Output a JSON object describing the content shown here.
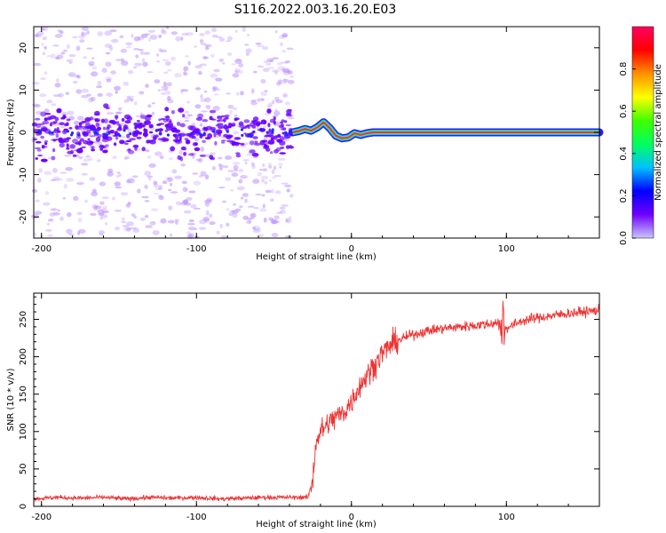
{
  "title": "S116.2022.003.16.20.E03",
  "colors": {
    "snr_line": "#ee3333",
    "dynamic_spectrum_points": "#6a00ff",
    "dynamic_spectrum_cloud": "#b88cff",
    "signal_band_outer": "#2a1aff",
    "signal_band_core": "#ff2a55"
  },
  "chart_data": [
    {
      "type": "heatmap",
      "name": "dynamic-spectrum",
      "xlabel": "Height of straight line (km)",
      "ylabel": "Frequency (Hz)",
      "xlim": [
        -205,
        160
      ],
      "ylim": [
        -25,
        25
      ],
      "xticks": [
        -200,
        -100,
        0,
        100
      ],
      "yticks": [
        -20,
        -10,
        0,
        10,
        20
      ],
      "grid": false,
      "noise_region_x": [
        -205,
        -38
      ],
      "signal_region_x": [
        -38,
        160
      ],
      "signal_center_trace": {
        "x": [
          -38,
          -34,
          -30,
          -26,
          -22,
          -18,
          -14,
          -10,
          -6,
          -2,
          2,
          6,
          10,
          14,
          20,
          40,
          90,
          160
        ],
        "y": [
          0,
          0.3,
          0.8,
          0.4,
          1.2,
          2.4,
          1.0,
          -0.8,
          -1.4,
          -1.2,
          -0.2,
          -0.6,
          -0.2,
          0,
          0,
          0,
          0,
          0
        ]
      },
      "colorbar": {
        "label": "Normalized spectral amplitude",
        "range": [
          0,
          1
        ],
        "ticks": [
          "0.0",
          "0.2",
          "0.4",
          "0.6",
          "0.8"
        ],
        "colormap": [
          "#c8c8ff",
          "#7000ff",
          "#0000ff",
          "#00c0ff",
          "#00ff60",
          "#40ff00",
          "#ffff00",
          "#ff9000",
          "#ff0000",
          "#ff0060"
        ]
      }
    },
    {
      "type": "line",
      "name": "snr",
      "xlabel": "Height of straight line (km)",
      "ylabel": "SNR (10 * v/v)",
      "xlim": [
        -205,
        160
      ],
      "ylim": [
        0,
        285
      ],
      "xticks": [
        -200,
        -100,
        0,
        100
      ],
      "yticks": [
        0,
        50,
        100,
        150,
        200,
        250
      ],
      "grid": false,
      "series": [
        {
          "x": [
            -205,
            -190,
            -175,
            -160,
            -145,
            -130,
            -115,
            -100,
            -85,
            -70,
            -55,
            -40,
            -28,
            -25,
            -24,
            -23,
            -20,
            -15,
            -10,
            -5,
            0,
            5,
            10,
            15,
            20,
            25,
            30,
            40,
            50,
            60,
            70,
            80,
            90,
            97,
            100,
            110,
            120,
            130,
            140,
            150,
            160
          ],
          "y": [
            10,
            12,
            11,
            12,
            10,
            12,
            11,
            12,
            10,
            11,
            12,
            12,
            12,
            35,
            60,
            85,
            100,
            110,
            120,
            125,
            140,
            160,
            175,
            190,
            205,
            215,
            222,
            230,
            235,
            238,
            240,
            242,
            244,
            248,
            238,
            248,
            252,
            255,
            258,
            260,
            262
          ]
        }
      ]
    }
  ]
}
